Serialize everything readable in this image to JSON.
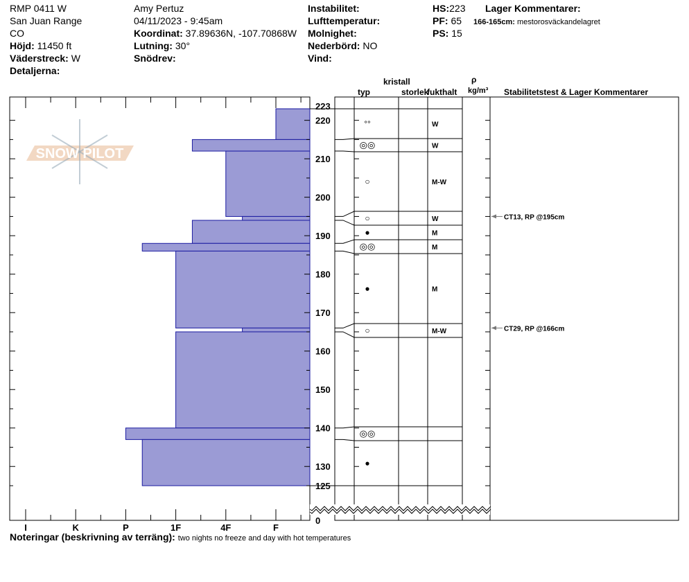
{
  "header": {
    "col1": [
      "RMP 0411 W",
      "San Juan Range",
      "CO"
    ],
    "elevation_label": "Höjd:",
    "elevation_value": "11450 ft",
    "aspect_label": "Väderstreck:",
    "aspect_value": "W",
    "details_label": "Detaljerna:",
    "observer": "Amy  Pertuz",
    "datetime": "04/11/2023 - 9:45am",
    "coord_label": "Koordinat:",
    "coord_value": "37.89636N, -107.70868W",
    "slope_label": "Lutning:",
    "slope_value": "30°",
    "drift_label": "Snödrev:",
    "instability_label": "Instabilitet:",
    "airtemp_label": "Lufttemperatur:",
    "cloud_label": "Molnighet:",
    "precip_label": "Nederbörd:",
    "precip_value": "NO",
    "wind_label": "Vind:",
    "hs_label": "HS:",
    "hs_value": "223",
    "pf_label": "PF:",
    "pf_value": "65",
    "ps_label": "PS:",
    "ps_value": "15",
    "layer_comments_label": "Lager Kommentarer:",
    "layer_comment_depth": "166-165cm:",
    "layer_comment_text": "mestorosväckandelagret"
  },
  "columns": {
    "crystal": "kristall",
    "type": "typ",
    "size": "storlek",
    "moisture": "fukthalt",
    "rho": "ρ",
    "density_unit": "kg/m³",
    "stability": "Stabilitetstest & Lager Kommentarer"
  },
  "logo_text": "SNOW PILOT",
  "notes": {
    "label": "Noteringar (beskrivning av terräng):",
    "text": "two nights no freeze and day with hot temperatures"
  },
  "colors": {
    "layer_fill": "#9b9bd5",
    "layer_stroke": "#1a1aa0",
    "arrow": "#777777"
  },
  "chart_data": {
    "type": "snow-profile",
    "hardness_scale": [
      "I",
      "K",
      "P",
      "1F",
      "4F",
      "F"
    ],
    "depth_ticks": [
      "223",
      "220",
      "210",
      "200",
      "190",
      "180",
      "170",
      "160",
      "150",
      "140",
      "130",
      "125",
      "0"
    ],
    "depth_range": [
      125,
      223
    ],
    "layers": [
      {
        "top": 223,
        "bottom": 215,
        "hardness": 5.0,
        "hardness_label": "F",
        "grain": "precip",
        "moisture": "W"
      },
      {
        "top": 215,
        "bottom": 212,
        "hardness": 3.33,
        "hardness_label": "1F+",
        "grain": "melt-cluster",
        "moisture": "W"
      },
      {
        "top": 212,
        "bottom": 195,
        "hardness": 4.0,
        "hardness_label": "4F",
        "grain": "rounded",
        "moisture": "M-W"
      },
      {
        "top": 195,
        "bottom": 194,
        "hardness": 4.33,
        "hardness_label": "4F-",
        "grain": "rounded",
        "moisture": "W"
      },
      {
        "top": 194,
        "bottom": 188,
        "hardness": 3.33,
        "hardness_label": "1F+",
        "grain": "ice",
        "moisture": "M"
      },
      {
        "top": 188,
        "bottom": 186,
        "hardness": 2.33,
        "hardness_label": "P-",
        "grain": "melt-cluster",
        "moisture": "M"
      },
      {
        "top": 186,
        "bottom": 166,
        "hardness": 3.0,
        "hardness_label": "1F",
        "grain": "ice",
        "moisture": "M"
      },
      {
        "top": 166,
        "bottom": 165,
        "hardness": 4.33,
        "hardness_label": "4F-",
        "grain": "rounded",
        "moisture": "M-W"
      },
      {
        "top": 165,
        "bottom": 140,
        "hardness": 3.0,
        "hardness_label": "1F",
        "grain": "",
        "moisture": ""
      },
      {
        "top": 140,
        "bottom": 137,
        "hardness": 2.0,
        "hardness_label": "P",
        "grain": "melt-cluster",
        "moisture": ""
      },
      {
        "top": 137,
        "bottom": 125,
        "hardness": 2.33,
        "hardness_label": "P-",
        "grain": "ice",
        "moisture": ""
      }
    ],
    "stability_tests": [
      {
        "depth": 195,
        "text": "CT13, RP @195cm"
      },
      {
        "depth": 166,
        "text": "CT29, RP @166cm"
      }
    ]
  }
}
